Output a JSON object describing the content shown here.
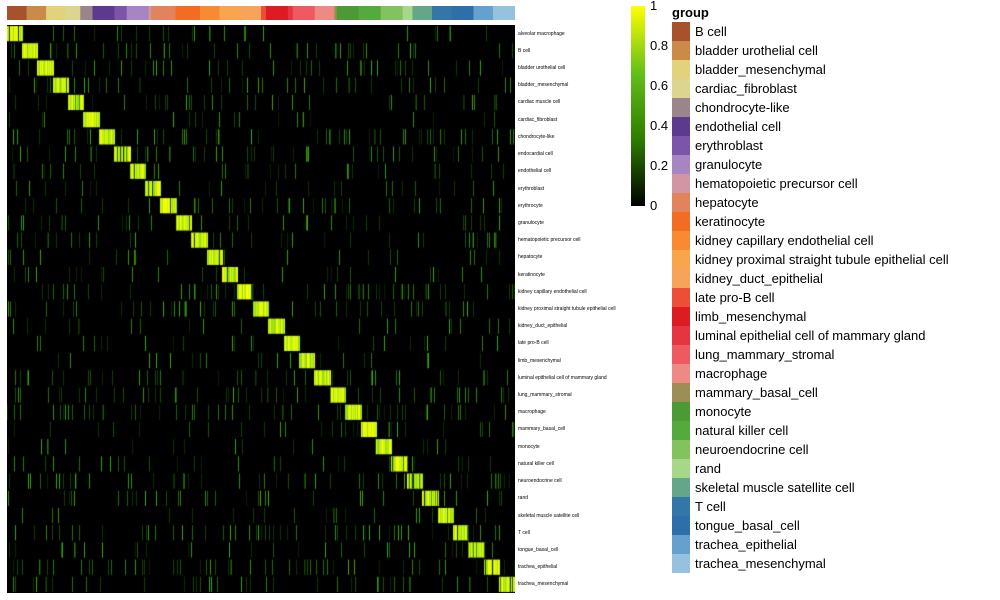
{
  "chart_data": {
    "type": "heatmap",
    "rows": [
      "alveolar macrophage",
      "B cell",
      "bladder urothelial cell",
      "bladder_mesenchymal",
      "cardiac muscle cell",
      "cardiac_fibroblast",
      "chondrocyte-like",
      "endocardial cell",
      "endothelial cell",
      "erythroblast",
      "erythrocyte",
      "granulocyte",
      "hematopoietic precursor cell",
      "hepatocyte",
      "keratinocyte",
      "kidney capillary endothelial cell",
      "kidney proximal straight tubule epithelial cell",
      "kidney_duct_epithelial",
      "late pro-B cell",
      "limb_mesenchymal",
      "luminal epithelial cell of mammary gland",
      "lung_mammary_stromal",
      "macrophage",
      "mammary_basal_cell",
      "monocyte",
      "natural killer cell",
      "neuroendocrine cell",
      "rand",
      "skeletal muscle satellite cell",
      "T cell",
      "tongue_basal_cell",
      "trachea_epithelial",
      "trachea_mesenchymal"
    ],
    "column_groups": [
      {
        "name": "B cell",
        "color": "#A6522C",
        "fraction": 0.04
      },
      {
        "name": "bladder urothelial cell",
        "color": "#C98B47",
        "fraction": 0.04
      },
      {
        "name": "bladder_mesenchymal",
        "color": "#E2D27A",
        "fraction": 0.04
      },
      {
        "name": "cardiac_fibroblast",
        "color": "#DCD58F",
        "fraction": 0.03
      },
      {
        "name": "chondrocyte-like",
        "color": "#9C858A",
        "fraction": 0.025
      },
      {
        "name": "endothelial cell",
        "color": "#5E3A8F",
        "fraction": 0.045
      },
      {
        "name": "erythroblast",
        "color": "#7D55A8",
        "fraction": 0.025
      },
      {
        "name": "granulocyte",
        "color": "#A785C3",
        "fraction": 0.045
      },
      {
        "name": "hematopoietic precursor cell",
        "color": "#D296A3",
        "fraction": 0.005
      },
      {
        "name": "hepatocyte",
        "color": "#E1835C",
        "fraction": 0.05
      },
      {
        "name": "keratinocyte",
        "color": "#F26D23",
        "fraction": 0.05
      },
      {
        "name": "kidney capillary endothelial cell",
        "color": "#F78A32",
        "fraction": 0.04
      },
      {
        "name": "kidney proximal straight tubule epithelial cell",
        "color": "#F9A54E",
        "fraction": 0.045
      },
      {
        "name": "kidney_duct_epithelial",
        "color": "#F7A35A",
        "fraction": 0.04
      },
      {
        "name": "late pro-B cell",
        "color": "#EC4E37",
        "fraction": 0.01
      },
      {
        "name": "limb_mesenchymal",
        "color": "#DD1B22",
        "fraction": 0.045
      },
      {
        "name": "luminal epithelial cell of mammary gland",
        "color": "#E53540",
        "fraction": 0.01
      },
      {
        "name": "lung_mammary_stromal",
        "color": "#EE5962",
        "fraction": 0.045
      },
      {
        "name": "macrophage",
        "color": "#EE8A85",
        "fraction": 0.04
      },
      {
        "name": "mammary_basal_cell",
        "color": "#9C8E55",
        "fraction": 0.005
      },
      {
        "name": "monocyte",
        "color": "#4B9A35",
        "fraction": 0.045
      },
      {
        "name": "natural killer cell",
        "color": "#55AA3D",
        "fraction": 0.045
      },
      {
        "name": "neuroendocrine cell",
        "color": "#83C35F",
        "fraction": 0.045
      },
      {
        "name": "rand",
        "color": "#A6D88A",
        "fraction": 0.02
      },
      {
        "name": "skeletal muscle satellite cell",
        "color": "#65A68B",
        "fraction": 0.04
      },
      {
        "name": "T cell",
        "color": "#3576A8",
        "fraction": 0.04
      },
      {
        "name": "tongue_basal_cell",
        "color": "#2E6FAA",
        "fraction": 0.045
      },
      {
        "name": "trachea_epithelial",
        "color": "#66A0CF",
        "fraction": 0.04
      },
      {
        "name": "trachea_mesenchymal",
        "color": "#95C2DF",
        "fraction": 0.045
      }
    ],
    "colorbar": {
      "min": 0,
      "max": 1,
      "ticks": [
        "1",
        "0.8",
        "0.6",
        "0.4",
        "0.2",
        "0"
      ],
      "colors": [
        "#000000",
        "#2E7D00",
        "#63C01A",
        "#FFFF00"
      ]
    },
    "legend": {
      "title": "group",
      "items": [
        {
          "label": "B cell",
          "color": "#A6522C"
        },
        {
          "label": "bladder urothelial cell",
          "color": "#C98B47"
        },
        {
          "label": "bladder_mesenchymal",
          "color": "#E2D27A"
        },
        {
          "label": "cardiac_fibroblast",
          "color": "#DCD58F"
        },
        {
          "label": "chondrocyte-like",
          "color": "#9C858A"
        },
        {
          "label": "endothelial cell",
          "color": "#5E3A8F"
        },
        {
          "label": "erythroblast",
          "color": "#7D55A8"
        },
        {
          "label": "granulocyte",
          "color": "#A785C3"
        },
        {
          "label": "hematopoietic precursor cell",
          "color": "#D296A3"
        },
        {
          "label": "hepatocyte",
          "color": "#E1835C"
        },
        {
          "label": "keratinocyte",
          "color": "#F26D23"
        },
        {
          "label": "kidney capillary endothelial cell",
          "color": "#F78A32"
        },
        {
          "label": "kidney proximal straight tubule epithelial cell",
          "color": "#F9A54E"
        },
        {
          "label": "kidney_duct_epithelial",
          "color": "#F7A35A"
        },
        {
          "label": "late pro-B cell",
          "color": "#EC4E37"
        },
        {
          "label": "limb_mesenchymal",
          "color": "#DD1B22"
        },
        {
          "label": "luminal epithelial cell of mammary gland",
          "color": "#E53540"
        },
        {
          "label": "lung_mammary_stromal",
          "color": "#EE5962"
        },
        {
          "label": "macrophage",
          "color": "#EE8A85"
        },
        {
          "label": "mammary_basal_cell",
          "color": "#9C8E55"
        },
        {
          "label": "monocyte",
          "color": "#4B9A35"
        },
        {
          "label": "natural killer cell",
          "color": "#55AA3D"
        },
        {
          "label": "neuroendocrine cell",
          "color": "#83C35F"
        },
        {
          "label": "rand",
          "color": "#A6D88A"
        },
        {
          "label": "skeletal muscle satellite cell",
          "color": "#65A68B"
        },
        {
          "label": "T cell",
          "color": "#3576A8"
        },
        {
          "label": "tongue_basal_cell",
          "color": "#2E6FAA"
        },
        {
          "label": "trachea_epithelial",
          "color": "#66A0CF"
        },
        {
          "label": "trachea_mesenchymal",
          "color": "#95C2DF"
        }
      ]
    }
  }
}
